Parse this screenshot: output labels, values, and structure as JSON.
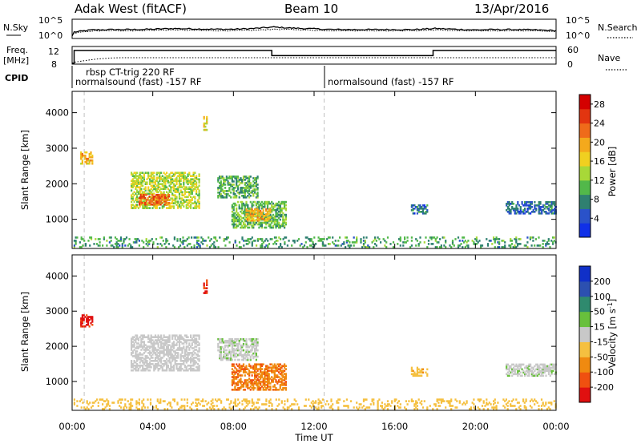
{
  "header": {
    "radar": "Adak West (fitACF)",
    "beam": "Beam 10",
    "date": "13/Apr/2016"
  },
  "top_panels": {
    "nsky_label": "N.Sky",
    "nsearch_label": "N.Search",
    "nsky_ticks": [
      "10^5",
      "10^0"
    ],
    "nsearch_ticks": [
      "10^5",
      "10^0"
    ],
    "freq_label_1": "Freq.",
    "freq_label_2": "[MHz]",
    "freq_ticks": [
      "12",
      "8"
    ],
    "nave_label": "Nave",
    "nave_ticks": [
      "60",
      "0"
    ],
    "cpid_label": "CPID",
    "cpid_entries": [
      {
        "text": "rbsp CT-trig 220 RF",
        "start_hour": 0.3
      },
      {
        "text": "normalsound (fast) -157 RF",
        "start_hour": 0.3
      },
      {
        "text": "normalsound (fast) -157 RF",
        "start_hour": 12.5
      }
    ]
  },
  "axes": {
    "xlabel": "Time UT",
    "ylabel": "Slant Range [km]",
    "xticks": [
      "00:00",
      "04:00",
      "08:00",
      "12:00",
      "16:00",
      "20:00",
      "00:00"
    ],
    "xtick_hours": [
      0,
      4,
      8,
      12,
      16,
      20,
      24
    ],
    "yticks": [
      1000,
      2000,
      3000,
      4000
    ],
    "xlim_hours": [
      0,
      24
    ],
    "ylim_km": [
      180,
      4600
    ]
  },
  "chart_data": [
    {
      "type": "line",
      "title": "",
      "xlabel": "",
      "ylabel": "N.Sky",
      "series": [
        {
          "name": "N.Sky",
          "x": [
            0,
            0.1,
            1,
            2,
            3,
            4,
            5,
            6,
            7,
            8,
            9,
            10,
            11,
            12,
            13,
            14,
            15,
            16,
            17,
            18,
            19,
            20,
            21,
            22,
            23,
            24
          ],
          "values": [
            0.5,
            1.6,
            2.2,
            2.3,
            2.3,
            2.4,
            2.6,
            2.5,
            2.4,
            2.4,
            2.6,
            3.0,
            2.7,
            2.5,
            2.3,
            2.3,
            2.3,
            2.3,
            2.3,
            2.6,
            2.4,
            2.2,
            2.3,
            2.3,
            2.2,
            2.0
          ]
        },
        {
          "name": "N.Search",
          "x": [
            0,
            0.1,
            1,
            2,
            3,
            4,
            5,
            6,
            7,
            8,
            9,
            10,
            11,
            12,
            13,
            14,
            15,
            16,
            17,
            18,
            19,
            20,
            21,
            22,
            23,
            24
          ],
          "values": [
            0.5,
            1.3,
            1.9,
            2.0,
            2.0,
            2.1,
            2.2,
            2.1,
            2.0,
            2.0,
            2.1,
            2.4,
            2.3,
            2.1,
            2.0,
            2.0,
            2.0,
            2.0,
            2.0,
            2.2,
            2.0,
            1.9,
            2.0,
            2.0,
            1.9,
            1.8
          ]
        }
      ]
    },
    {
      "type": "line",
      "title": "",
      "xlabel": "",
      "ylabel": "Freq. [MHz]",
      "series": [
        {
          "name": "Freq.",
          "x": [
            0,
            0.1,
            0.1,
            9.9,
            9.9,
            17.9,
            17.9,
            24
          ],
          "values": [
            8,
            8,
            12,
            12,
            10.4,
            10.4,
            12,
            12
          ]
        },
        {
          "name": "Nave",
          "x": [
            0,
            0.1,
            0.6,
            1.2,
            2,
            2.5,
            24
          ],
          "values": [
            0,
            4,
            10,
            16,
            20,
            21,
            21
          ]
        }
      ]
    },
    {
      "type": "heatmap",
      "title": "",
      "xlabel": "Time UT",
      "ylabel": "Slant Range [km]",
      "colorbar_label": "Power [dB]",
      "colorbar_ticks": [
        4,
        8,
        12,
        16,
        20,
        24,
        28
      ],
      "colorbar_range": [
        0,
        30
      ],
      "colorbar_colors": [
        "#1030e8",
        "#2a52c9",
        "#2f8070",
        "#52b84a",
        "#a8d838",
        "#f0d020",
        "#f4a91c",
        "#ef6b1a",
        "#e23510",
        "#d40000"
      ],
      "regions": [
        {
          "name": "near-range",
          "t0": 0.0,
          "t1": 24.0,
          "r0": 200,
          "r1": 480,
          "value": 9
        },
        {
          "name": "patch-0030",
          "t0": 0.4,
          "t1": 1.0,
          "r0": 2550,
          "r1": 2900,
          "value": 18
        },
        {
          "name": "patch-0300",
          "t0": 2.9,
          "t1": 6.3,
          "r0": 1300,
          "r1": 2300,
          "value": 14
        },
        {
          "name": "patch-0320-core",
          "t0": 3.3,
          "t1": 4.8,
          "r0": 1400,
          "r1": 1700,
          "value": 23
        },
        {
          "name": "streak-0640",
          "t0": 6.5,
          "t1": 6.7,
          "r0": 3500,
          "r1": 3900,
          "value": 16
        },
        {
          "name": "patch-0730",
          "t0": 7.2,
          "t1": 9.2,
          "r0": 1600,
          "r1": 2200,
          "value": 10
        },
        {
          "name": "patch-0800",
          "t0": 7.9,
          "t1": 10.6,
          "r0": 750,
          "r1": 1500,
          "value": 11
        },
        {
          "name": "patch-0850-core",
          "t0": 8.6,
          "t1": 9.8,
          "r0": 950,
          "r1": 1300,
          "value": 19
        },
        {
          "name": "patch-1700",
          "t0": 16.8,
          "t1": 17.6,
          "r0": 1150,
          "r1": 1400,
          "value": 6
        },
        {
          "name": "patch-2130",
          "t0": 21.5,
          "t1": 24.0,
          "r0": 1150,
          "r1": 1500,
          "value": 6
        }
      ]
    },
    {
      "type": "heatmap",
      "title": "",
      "xlabel": "Time UT",
      "ylabel": "Slant Range [km]",
      "colorbar_label": "Velocity [m s-1]",
      "colorbar_ticks": [
        -200,
        -100,
        -50,
        -15,
        15,
        50,
        100,
        200
      ],
      "colorbar_colors": [
        "#e01010",
        "#f05010",
        "#f08a10",
        "#f5c040",
        "#c8c8c8",
        "#68c03c",
        "#2f8a6e",
        "#2c50b0",
        "#1030c8"
      ],
      "regions": [
        {
          "name": "near-range",
          "t0": 0.0,
          "t1": 24.0,
          "r0": 200,
          "r1": 480,
          "value": -30
        },
        {
          "name": "patch-0030",
          "t0": 0.4,
          "t1": 1.0,
          "r0": 2550,
          "r1": 2900,
          "value": -220
        },
        {
          "name": "patch-0300",
          "t0": 2.9,
          "t1": 6.3,
          "r0": 1300,
          "r1": 2300,
          "value": 0
        },
        {
          "name": "streak-0640",
          "t0": 6.5,
          "t1": 6.7,
          "r0": 3500,
          "r1": 3900,
          "value": -200
        },
        {
          "name": "patch-0730",
          "t0": 7.2,
          "t1": 9.2,
          "r0": 1600,
          "r1": 2200,
          "value": 5
        },
        {
          "name": "patch-0800",
          "t0": 7.9,
          "t1": 10.6,
          "r0": 750,
          "r1": 1500,
          "value": -90
        },
        {
          "name": "patch-1700",
          "t0": 16.8,
          "t1": 17.6,
          "r0": 1150,
          "r1": 1400,
          "value": -40
        },
        {
          "name": "patch-2130",
          "t0": 21.5,
          "t1": 24.0,
          "r0": 1150,
          "r1": 1500,
          "value": 5
        }
      ]
    }
  ]
}
